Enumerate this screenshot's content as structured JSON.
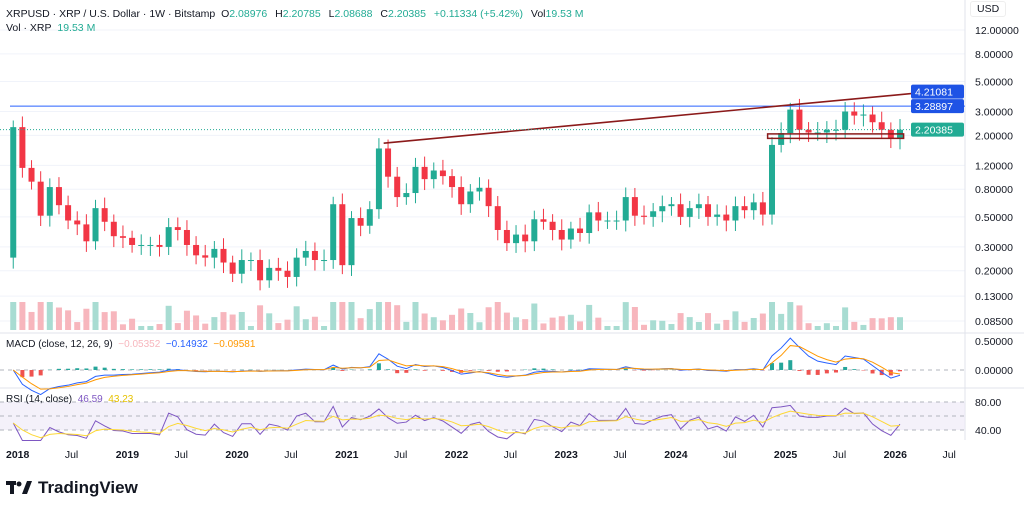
{
  "header": {
    "symbol_line": "XRPUSD · XRP / U.S. Dollar · 1W · Bitstamp",
    "o_label": "O",
    "open": "2.08976",
    "h_label": "H",
    "high": "2.20785",
    "l_label": "L",
    "low": "2.08688",
    "c_label": "C",
    "close": "2.20385",
    "change": "+0.11334 (+5.42%)",
    "vol_label": "Vol",
    "vol": "19.53 M",
    "vol_line_label": "Vol · XRP",
    "vol_line_value": "19.53 M"
  },
  "macd_legend": {
    "label": "MACD (close, 12, 26, 9)",
    "hist": "−0.05352",
    "macd": "−0.14932",
    "signal": "−0.09581"
  },
  "rsi_legend": {
    "label": "RSI (14, close)",
    "rsi": "46.59",
    "ma": "43.23"
  },
  "currency": "USD",
  "brand": "TradingView",
  "colors": {
    "up": "#22ab94",
    "down": "#f23645",
    "macd": "#2962ff",
    "signal": "#ff9800",
    "rsi": "#7e57c2",
    "rsi_ma": "#fdd835",
    "hline": "#2962ff",
    "trend": "#8b1a1a",
    "price_tag": "#22ab94"
  },
  "chart_data": {
    "type": "candlestick",
    "scale": "log",
    "interval_note": "approximate monthly closes read from weekly chart",
    "ylim": [
      0.08,
      14
    ],
    "y_ticks": [
      "12.00000",
      "8.00000",
      "5.00000",
      "3.00000",
      "2.00000",
      "1.20000",
      "0.80000",
      "0.50000",
      "0.30000",
      "0.20000",
      "0.13000",
      "0.08500"
    ],
    "x_ticks": [
      "2018",
      "Jul",
      "2019",
      "Jul",
      "2020",
      "Jul",
      "2021",
      "Jul",
      "2022",
      "Jul",
      "2023",
      "Jul",
      "2024",
      "Jul",
      "2025",
      "Jul",
      "2026",
      "Jul"
    ],
    "start": "2017-12",
    "first_open": 0.25,
    "closes": [
      2.3,
      1.15,
      0.91,
      0.51,
      0.83,
      0.61,
      0.47,
      0.44,
      0.33,
      0.58,
      0.46,
      0.36,
      0.35,
      0.31,
      0.31,
      0.31,
      0.3,
      0.42,
      0.4,
      0.31,
      0.26,
      0.25,
      0.29,
      0.23,
      0.19,
      0.24,
      0.24,
      0.17,
      0.21,
      0.2,
      0.18,
      0.25,
      0.28,
      0.24,
      0.24,
      0.62,
      0.22,
      0.49,
      0.43,
      0.57,
      1.6,
      0.99,
      0.7,
      0.75,
      1.17,
      0.95,
      1.1,
      1.0,
      0.83,
      0.62,
      0.77,
      0.82,
      0.6,
      0.4,
      0.32,
      0.37,
      0.33,
      0.48,
      0.46,
      0.4,
      0.34,
      0.41,
      0.38,
      0.54,
      0.47,
      0.47,
      0.47,
      0.7,
      0.51,
      0.5,
      0.55,
      0.6,
      0.62,
      0.5,
      0.58,
      0.62,
      0.5,
      0.52,
      0.47,
      0.6,
      0.56,
      0.64,
      0.52,
      1.7,
      2.08,
      3.1,
      2.2,
      2.1,
      2.1,
      2.2,
      2.2,
      3.0,
      2.8,
      2.85,
      2.5,
      2.2,
      1.9,
      2.2
    ],
    "price_labels": [
      {
        "value": 4.21081,
        "text": "4.21081",
        "color": "#1e53e5"
      },
      {
        "value": 3.28897,
        "text": "3.28897",
        "color": "#1e53e5"
      },
      {
        "value": 2.20385,
        "text": "2.20385",
        "color": "#22ab94"
      }
    ],
    "horizontal_line": 3.28897,
    "trendline": {
      "from": [
        "2021-05",
        1.75
      ],
      "to": [
        "2026-05",
        4.21081
      ]
    },
    "support_zone": {
      "from": "2024-11",
      "to": "2026-01",
      "low": 1.9,
      "high": 2.05
    },
    "macd_ticks": [
      "0.50000",
      "0.00000"
    ],
    "rsi_ticks": [
      "80.00",
      "40.00"
    ]
  }
}
